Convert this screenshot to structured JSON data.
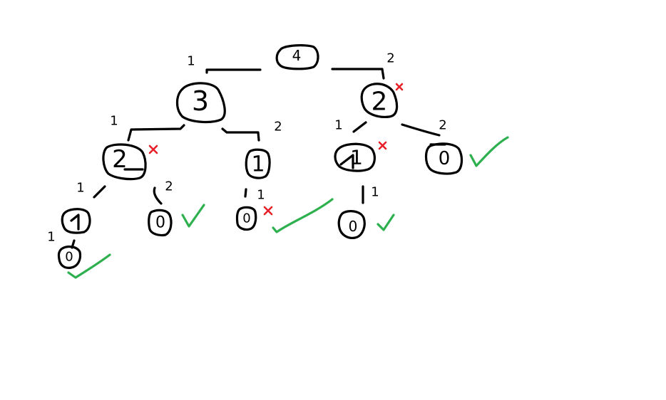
{
  "colors": {
    "ink": "#000000",
    "correct": "#2eb04f",
    "wrong": "#e8202a",
    "background": "#ffffff"
  },
  "tree": {
    "nodes": [
      {
        "id": "root",
        "value": "4"
      },
      {
        "id": "n3",
        "value": "3"
      },
      {
        "id": "n2r",
        "value": "2",
        "mark": "wrong"
      },
      {
        "id": "n2l",
        "value": "2",
        "mark": "wrong"
      },
      {
        "id": "n1m",
        "value": "1"
      },
      {
        "id": "n1r",
        "value": "1",
        "mark": "wrong"
      },
      {
        "id": "n0r",
        "value": "0",
        "mark": "correct"
      },
      {
        "id": "n1ll",
        "value": "1"
      },
      {
        "id": "n0l",
        "value": "0",
        "mark": "correct"
      },
      {
        "id": "n0m",
        "value": "0",
        "mark": "wrong-then-correct"
      },
      {
        "id": "n0rb",
        "value": "0",
        "mark": "correct"
      },
      {
        "id": "n0bot",
        "value": "0",
        "mark": "correct"
      }
    ],
    "edges": [
      {
        "from": "root",
        "to": "n3",
        "label": "1"
      },
      {
        "from": "root",
        "to": "n2r",
        "label": "2"
      },
      {
        "from": "n3",
        "to": "n2l",
        "label": "1"
      },
      {
        "from": "n3",
        "to": "n1m",
        "label": "2"
      },
      {
        "from": "n2r",
        "to": "n1r",
        "label": "1"
      },
      {
        "from": "n2r",
        "to": "n0r",
        "label": "2"
      },
      {
        "from": "n2l",
        "to": "n1ll",
        "label": "1"
      },
      {
        "from": "n2l",
        "to": "n0l",
        "label": "2"
      },
      {
        "from": "n1m",
        "to": "n0m",
        "label": "1"
      },
      {
        "from": "n1r",
        "to": "n0rb",
        "label": "1"
      },
      {
        "from": "n1ll",
        "to": "n0bot",
        "label": "1"
      }
    ]
  }
}
